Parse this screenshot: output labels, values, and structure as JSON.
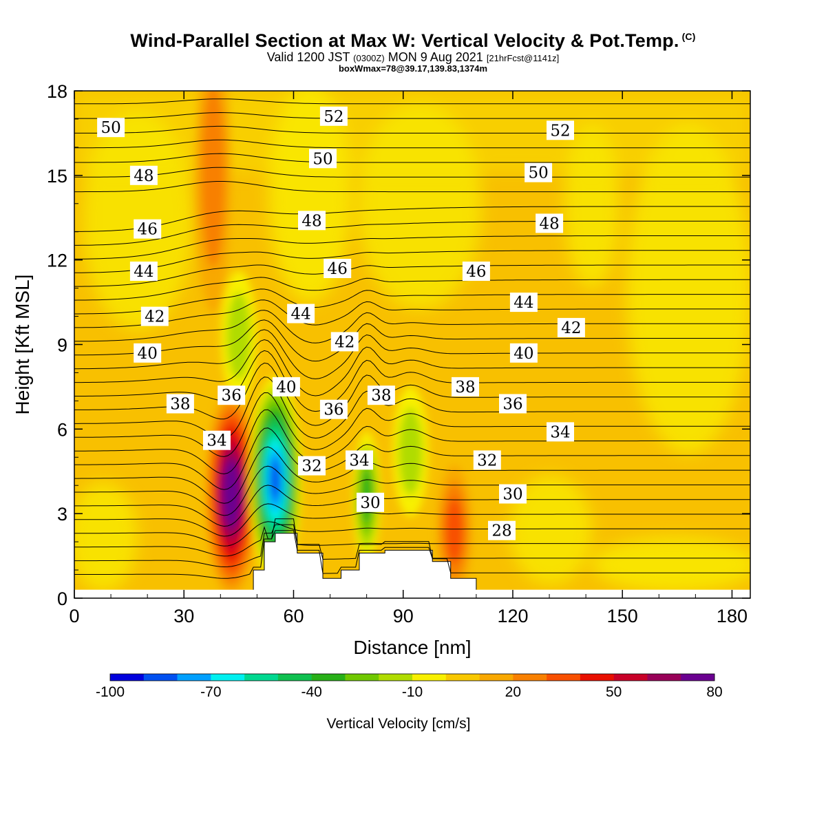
{
  "header": {
    "title": "Wind-Parallel Section at Max W: Vertical Velocity & Pot.Temp.",
    "title_mark": "(C)",
    "valid_pre": "Valid 1200 JST",
    "valid_utc": "(0300Z)",
    "valid_date": "MON 9 Aug 2021",
    "valid_fcst": "[21hrFcst@1141z]",
    "box_info": "boxWmax=78@39.17,139.83,1374m"
  },
  "chart_data": {
    "type": "heatmap",
    "title": "Wind-Parallel Section at Max W: Vertical Velocity & Pot.Temp.",
    "xlabel": "Distance [nm]",
    "ylabel": "Height [Kft MSL]",
    "xlim": [
      0,
      185
    ],
    "ylim": [
      0,
      18
    ],
    "x_ticks": [
      "0",
      "30",
      "60",
      "90",
      "120",
      "150",
      "180"
    ],
    "y_ticks": [
      "0",
      "3",
      "6",
      "9",
      "12",
      "15",
      "18"
    ],
    "colorbar": {
      "label": "Vertical Velocity [cm/s]",
      "tick_labels": [
        "-100",
        "-70",
        "-40",
        "-10",
        "20",
        "50",
        "80"
      ],
      "min": -100,
      "max": 80,
      "colors": [
        "#0000dd",
        "#0050f0",
        "#00a0ff",
        "#00f0f0",
        "#00d890",
        "#10c050",
        "#28b018",
        "#70c800",
        "#b0dc00",
        "#f8f000",
        "#f8c800",
        "#f8a800",
        "#f88000",
        "#f85000",
        "#e81000",
        "#c80028",
        "#980058",
        "#6a0090"
      ]
    },
    "velocity_features": [
      {
        "x": 43,
        "y": 3.7,
        "w": 75,
        "desc": "updraft"
      },
      {
        "x": 38,
        "y": 15.0,
        "w": 20,
        "desc": "updraft"
      },
      {
        "x": 104,
        "y": 2.4,
        "w": 25,
        "desc": "updraft"
      },
      {
        "x": 55,
        "y": 4.2,
        "w": -85,
        "desc": "downdraft"
      },
      {
        "x": 80,
        "y": 3.6,
        "w": -35,
        "desc": "downdraft"
      },
      {
        "x": 92,
        "y": 5.2,
        "w": -20,
        "desc": "downdraft"
      },
      {
        "x": 45,
        "y": 9.3,
        "w": -15,
        "desc": "downdraft"
      }
    ],
    "isentrope_labels": [
      {
        "text": "50",
        "x": 10,
        "y": 16.7
      },
      {
        "text": "52",
        "x": 71,
        "y": 17.1
      },
      {
        "text": "52",
        "x": 133,
        "y": 16.6
      },
      {
        "text": "48",
        "x": 19,
        "y": 15.0
      },
      {
        "text": "50",
        "x": 68,
        "y": 15.6
      },
      {
        "text": "50",
        "x": 127,
        "y": 15.1
      },
      {
        "text": "46",
        "x": 20,
        "y": 13.1
      },
      {
        "text": "48",
        "x": 65,
        "y": 13.4
      },
      {
        "text": "48",
        "x": 130,
        "y": 13.3
      },
      {
        "text": "44",
        "x": 19,
        "y": 11.6
      },
      {
        "text": "46",
        "x": 72,
        "y": 11.7
      },
      {
        "text": "46",
        "x": 110,
        "y": 11.6
      },
      {
        "text": "44",
        "x": 62,
        "y": 10.1
      },
      {
        "text": "44",
        "x": 123,
        "y": 10.5
      },
      {
        "text": "42",
        "x": 22,
        "y": 10.0
      },
      {
        "text": "42",
        "x": 74,
        "y": 9.1
      },
      {
        "text": "42",
        "x": 136,
        "y": 9.6
      },
      {
        "text": "40",
        "x": 20,
        "y": 8.7
      },
      {
        "text": "40",
        "x": 58,
        "y": 7.5
      },
      {
        "text": "40",
        "x": 123,
        "y": 8.7
      },
      {
        "text": "38",
        "x": 29,
        "y": 6.9
      },
      {
        "text": "38",
        "x": 84,
        "y": 7.2
      },
      {
        "text": "38",
        "x": 107,
        "y": 7.5
      },
      {
        "text": "36",
        "x": 43,
        "y": 7.2
      },
      {
        "text": "36",
        "x": 71,
        "y": 6.7
      },
      {
        "text": "36",
        "x": 120,
        "y": 6.9
      },
      {
        "text": "34",
        "x": 39,
        "y": 5.6
      },
      {
        "text": "34",
        "x": 78,
        "y": 4.9
      },
      {
        "text": "34",
        "x": 133,
        "y": 5.9
      },
      {
        "text": "32",
        "x": 65,
        "y": 4.7
      },
      {
        "text": "32",
        "x": 113,
        "y": 4.9
      },
      {
        "text": "30",
        "x": 81,
        "y": 3.4
      },
      {
        "text": "30",
        "x": 120,
        "y": 3.7
      },
      {
        "text": "28",
        "x": 117,
        "y": 2.4
      }
    ],
    "terrain": [
      [
        49,
        0.3
      ],
      [
        49,
        1.0
      ],
      [
        52,
        1.0
      ],
      [
        52,
        2.0
      ],
      [
        55,
        2.0
      ],
      [
        55,
        2.3
      ],
      [
        61,
        2.3
      ],
      [
        61,
        1.6
      ],
      [
        68,
        1.6
      ],
      [
        68,
        0.7
      ],
      [
        73,
        0.7
      ],
      [
        73,
        1.0
      ],
      [
        78,
        1.0
      ],
      [
        78,
        1.6
      ],
      [
        85,
        1.6
      ],
      [
        85,
        1.7
      ],
      [
        98,
        1.7
      ],
      [
        98,
        1.3
      ],
      [
        103,
        1.3
      ],
      [
        103,
        0.7
      ],
      [
        110,
        0.7
      ],
      [
        110,
        0.3
      ]
    ],
    "grid": false,
    "legend": "bottom"
  }
}
